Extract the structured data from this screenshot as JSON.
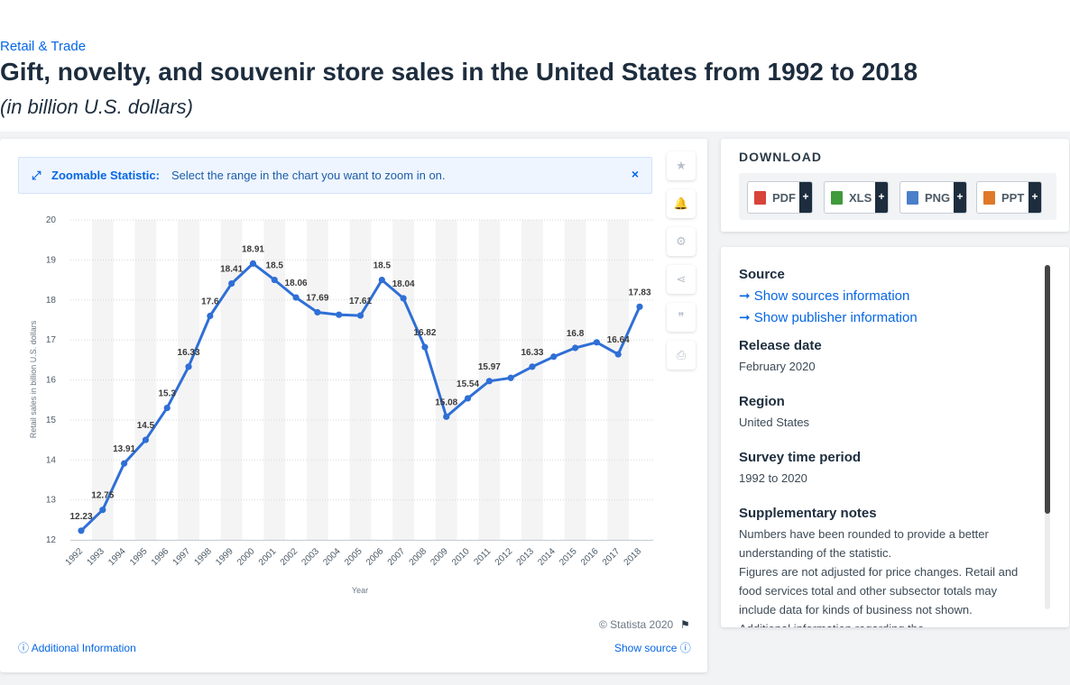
{
  "breadcrumb": "Retail & Trade",
  "header": {
    "title": "Gift, novelty, and souvenir store sales in the United States from 1992 to 2018",
    "subtitle": "(in billion U.S. dollars)"
  },
  "zoom_bar": {
    "label": "Zoomable Statistic:",
    "text": "Select the range in the chart you want to zoom in on.",
    "close": "×"
  },
  "side_tools": [
    {
      "name": "favorite-star-icon",
      "glyph": "★"
    },
    {
      "name": "notification-bell-icon",
      "glyph": "🔔"
    },
    {
      "name": "settings-gear-icon",
      "glyph": "⚙"
    },
    {
      "name": "share-icon",
      "glyph": "⋖"
    },
    {
      "name": "cite-quote-icon",
      "glyph": "❞"
    },
    {
      "name": "print-icon",
      "glyph": "⎙"
    }
  ],
  "footer": {
    "copyright": "© Statista 2020",
    "additional_info": "Additional Information",
    "show_source": "Show source"
  },
  "download": {
    "title": "DOWNLOAD",
    "buttons": [
      {
        "label": "PDF",
        "color": "#d8433a",
        "plus": "+"
      },
      {
        "label": "XLS",
        "color": "#3f9a3c",
        "plus": "+"
      },
      {
        "label": "PNG",
        "color": "#4a7fc9",
        "plus": "+"
      },
      {
        "label": "PPT",
        "color": "#e0782a",
        "plus": "+"
      }
    ]
  },
  "info": {
    "source_heading": "Source",
    "show_sources": "Show sources information",
    "show_publisher": "Show publisher information",
    "release_heading": "Release date",
    "release_value": "February 2020",
    "region_heading": "Region",
    "region_value": "United States",
    "survey_heading": "Survey time period",
    "survey_value": "1992 to 2020",
    "notes_heading": "Supplementary notes",
    "notes_1": "Numbers have been rounded to provide a better understanding of the statistic.",
    "notes_2": "Figures are not adjusted for price changes. Retail and food services total and other subsector totals may include data for kinds of business not shown.",
    "notes_3": "Additional information regarding the"
  },
  "chart_data": {
    "type": "line",
    "xlabel": "Year",
    "ylabel": "Retail sales in billion U.S. dollars",
    "ylim": [
      12,
      20
    ],
    "yticks": [
      12,
      13,
      14,
      15,
      16,
      17,
      18,
      19,
      20
    ],
    "grid": true,
    "line_color": "#2f6fd6",
    "categories": [
      "1992",
      "1993",
      "1994",
      "1995",
      "1996",
      "1997",
      "1998",
      "1999",
      "2000",
      "2001",
      "2002",
      "2003",
      "2004",
      "2005",
      "2006",
      "2007",
      "2008",
      "2009",
      "2010",
      "2011",
      "2012",
      "2013",
      "2014",
      "2015",
      "2016",
      "2017",
      "2018"
    ],
    "values": [
      12.23,
      12.75,
      13.91,
      14.5,
      15.3,
      16.33,
      17.6,
      18.41,
      18.91,
      18.5,
      18.06,
      17.69,
      17.63,
      17.61,
      18.5,
      18.04,
      16.82,
      15.08,
      15.54,
      15.97,
      16.05,
      16.33,
      16.58,
      16.8,
      16.94,
      16.64,
      17.83
    ],
    "labels": [
      "12.23",
      "12.75",
      "13.91",
      "14.5",
      "15.3",
      "16.33",
      "17.6",
      "18.41",
      "18.91",
      "18.5",
      "18.06",
      "17.69",
      "",
      "17.61",
      "18.5",
      "18.04",
      "16.82",
      "15.08",
      "15.54",
      "15.97",
      "",
      "16.33",
      "",
      "16.8",
      "",
      "16.64",
      "17.83"
    ]
  }
}
